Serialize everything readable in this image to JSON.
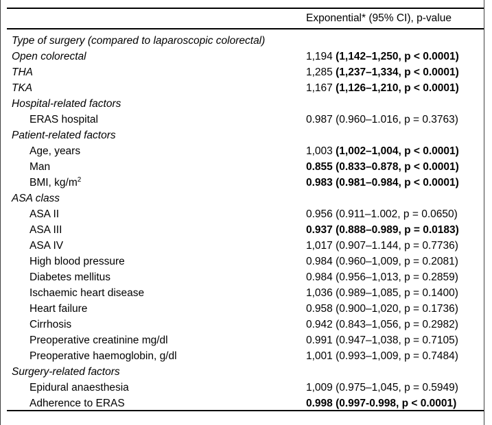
{
  "header": {
    "value_col": "Exponential* (95% CI), p-value"
  },
  "colors": {
    "background": "#ffffff",
    "text": "#000000",
    "rule": "#000000",
    "edge_line": "#3f3f3f"
  },
  "rows": [
    {
      "label": "Type of surgery (compared to laparoscopic colorectal)",
      "italic": true,
      "indent": false,
      "value_normal": "",
      "value_bold": ""
    },
    {
      "label": "Open colorectal",
      "italic": true,
      "indent": false,
      "value_normal": "1,194 ",
      "value_bold": "(1,142–1,250, p < 0.0001)"
    },
    {
      "label": "THA",
      "italic": true,
      "indent": false,
      "value_normal": "1,285 ",
      "value_bold": "(1,237–1,334, p < 0.0001)"
    },
    {
      "label": "TKA",
      "italic": true,
      "indent": false,
      "value_normal": "1,167 ",
      "value_bold": "(1,126–1,210, p < 0.0001)"
    },
    {
      "label": "Hospital-related factors",
      "italic": true,
      "indent": false,
      "value_normal": "",
      "value_bold": ""
    },
    {
      "label": "ERAS hospital",
      "italic": false,
      "indent": true,
      "value_normal": "0.987 (0.960–1.016, p = 0.3763)",
      "value_bold": ""
    },
    {
      "label": "Patient-related factors",
      "italic": true,
      "indent": false,
      "value_normal": "",
      "value_bold": ""
    },
    {
      "label": "Age, years",
      "italic": false,
      "indent": true,
      "value_normal": "1,003 ",
      "value_bold": "(1,002–1,004, p < 0.0001)"
    },
    {
      "label": "Man",
      "italic": false,
      "indent": true,
      "value_normal": "",
      "value_bold": "0.855 (0.833–0.878, p < 0.0001)"
    },
    {
      "label": "BMI, kg/m",
      "label_sup": "2",
      "italic": false,
      "indent": true,
      "value_normal": "",
      "value_bold": "0.983 (0.981–0.984, p < 0.0001)"
    },
    {
      "label": "ASA class",
      "italic": true,
      "indent": false,
      "value_normal": "",
      "value_bold": ""
    },
    {
      "label": "ASA II",
      "italic": false,
      "indent": true,
      "value_normal": "0.956 (0.911–1.002, p = 0.0650)",
      "value_bold": ""
    },
    {
      "label": "ASA III",
      "italic": false,
      "indent": true,
      "value_normal": "",
      "value_bold": "0.937 (0.888–0.989, p = 0.0183)"
    },
    {
      "label": "ASA IV",
      "italic": false,
      "indent": true,
      "value_normal": "1,017 (0.907–1.144, p = 0.7736)",
      "value_bold": ""
    },
    {
      "label": "High blood pressure",
      "italic": false,
      "indent": true,
      "value_normal": "0.984 (0.960–1,009, p = 0.2081)",
      "value_bold": ""
    },
    {
      "label": "Diabetes mellitus",
      "italic": false,
      "indent": true,
      "value_normal": "0.984 (0.956–1,013, p = 0.2859)",
      "value_bold": ""
    },
    {
      "label": "Ischaemic heart disease",
      "italic": false,
      "indent": true,
      "value_normal": "1,036 (0.989–1,085, p = 0.1400)",
      "value_bold": ""
    },
    {
      "label": "Heart failure",
      "italic": false,
      "indent": true,
      "value_normal": "0.958 (0.900–1,020, p = 0.1736)",
      "value_bold": ""
    },
    {
      "label": "Cirrhosis",
      "italic": false,
      "indent": true,
      "value_normal": "0.942 (0.843–1,056, p = 0.2982)",
      "value_bold": ""
    },
    {
      "label": "Preoperative creatinine mg/dl",
      "italic": false,
      "indent": true,
      "value_normal": "0.991 (0.947–1,038, p = 0.7105)",
      "value_bold": ""
    },
    {
      "label": "Preoperative haemoglobin, g/dl",
      "italic": false,
      "indent": true,
      "value_normal": "1,001 (0.993–1,009, p = 0.7484)",
      "value_bold": ""
    },
    {
      "label": "Surgery-related factors",
      "italic": true,
      "indent": false,
      "value_normal": "",
      "value_bold": ""
    },
    {
      "label": "Epidural anaesthesia",
      "italic": false,
      "indent": true,
      "value_normal": "1,009 (0.975–1,045, p = 0.5949)",
      "value_bold": ""
    },
    {
      "label": "Adherence to ERAS",
      "italic": false,
      "indent": true,
      "value_normal": "",
      "value_bold": "0.998 (0.997-0.998, p < 0.0001)"
    }
  ]
}
